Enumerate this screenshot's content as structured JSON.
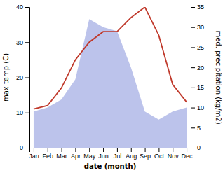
{
  "chart_data": {
    "type": "line",
    "categories": [
      "Jan",
      "Feb",
      "Mar",
      "Apr",
      "May",
      "Jun",
      "Jul",
      "Aug",
      "Sep",
      "Oct",
      "Nov",
      "Dec"
    ],
    "xlabel": "date (month)",
    "ylabel": "max temp (C)",
    "y2label": "med. precipitation (kg/m2)",
    "series": [
      {
        "type": "area",
        "axis": "y2",
        "color": "#b0b8e8",
        "values": [
          9,
          10,
          12,
          17,
          32,
          30,
          29,
          20,
          9,
          7,
          9,
          10
        ]
      },
      {
        "type": "line",
        "color": "#c0392b",
        "values": [
          11,
          12,
          17,
          25,
          30,
          33,
          33,
          37,
          40,
          32,
          18,
          13
        ]
      }
    ],
    "ylim": [
      0,
      40
    ],
    "yticks": [
      0,
      10,
      20,
      30,
      40
    ],
    "y2lim": [
      0,
      35
    ],
    "y2ticks": [
      0,
      5,
      10,
      15,
      20,
      25,
      30,
      35
    ],
    "grid": false
  }
}
